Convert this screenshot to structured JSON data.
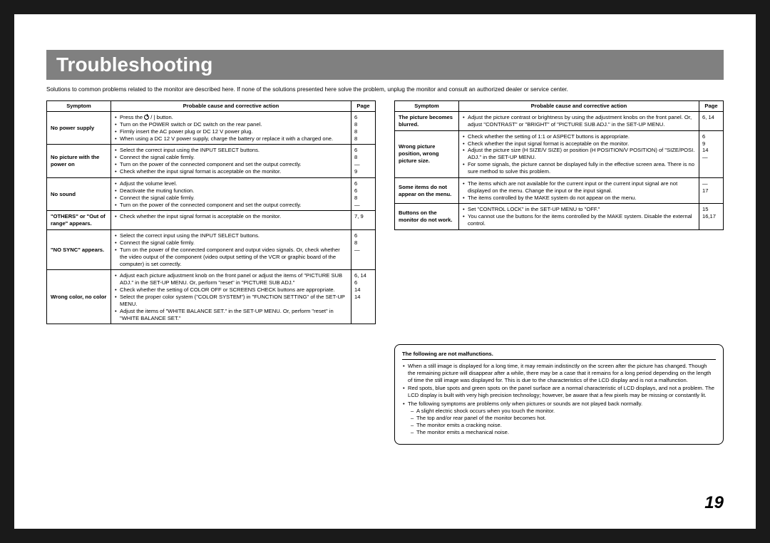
{
  "title": "Troubleshooting",
  "intro": "Solutions to common problems related to the monitor are described here. If none of the solutions presented here solve the problem, unplug the monitor and consult an authorized dealer or service center.",
  "headers": {
    "symptom": "Symptom",
    "action": "Probable cause and corrective action",
    "page": "Page"
  },
  "left_rows": [
    {
      "symptom": "No power supply",
      "actions": [
        "Press the ⏻ / | button.",
        "Turn on the POWER switch or DC switch on the rear panel.",
        "Firmly insert the AC power plug or DC 12 V power plug.",
        "When using a DC 12 V power supply, charge the battery or replace it with a charged one."
      ],
      "pages": [
        "6",
        "8",
        "8",
        "8"
      ]
    },
    {
      "symptom": "No picture with the power on",
      "actions": [
        "Select the correct input using the INPUT SELECT buttons.",
        "Connect the signal cable firmly.",
        "Turn on the power of the connected component and set the output correctly.",
        "Check whether the input signal format is acceptable on the monitor."
      ],
      "pages": [
        "6",
        "8",
        "—",
        "9"
      ]
    },
    {
      "symptom": "No sound",
      "actions": [
        "Adjust the volume level.",
        "Deactivate the muting function.",
        "Connect the signal cable firmly.",
        "Turn on the power of the connected component and set the output correctly."
      ],
      "pages": [
        "6",
        "6",
        "8",
        "—"
      ]
    },
    {
      "symptom": "\"OTHERS\" or \"Out of range\" appears.",
      "actions": [
        "Check whether the input signal format is acceptable on the monitor."
      ],
      "pages": [
        "7, 9"
      ]
    },
    {
      "symptom": "\"NO SYNC\" appears.",
      "actions": [
        "Select the correct input using the INPUT SELECT buttons.",
        "Connect the signal cable firmly.",
        "Turn on the power of the connected component and output video signals. Or, check whether the video output of the component (video output setting of the VCR or graphic board of the computer) is set correctly."
      ],
      "pages": [
        "6",
        "8",
        "—"
      ]
    },
    {
      "symptom": "Wrong color, no color",
      "actions": [
        "Adjust each picture adjustment knob on the front panel or adjust the items of \"PICTURE SUB ADJ.\" in the SET-UP MENU. Or, perform \"reset\" in \"PICTURE SUB ADJ.\"",
        "Check whether the setting of COLOR OFF or SCREENS CHECK buttons are appropriate.",
        "Select the proper color system (\"COLOR SYSTEM\") in \"FUNCTION SETTING\" of the SET-UP MENU.",
        "Adjust the items of \"WHITE BALANCE SET.\" in the SET-UP MENU. Or, perform \"reset\" in \"WHITE BALANCE SET.\""
      ],
      "pages": [
        "6, 14",
        "6",
        "14",
        "14"
      ]
    }
  ],
  "right_rows": [
    {
      "symptom": "The picture becomes blurred.",
      "actions": [
        "Adjust the picture contrast or brightness by using the adjustment knobs on the front panel. Or, adjust \"CONTRAST\" or \"BRIGHT\" of \"PICTURE SUB ADJ.\" in the SET-UP MENU."
      ],
      "pages": [
        "6, 14"
      ]
    },
    {
      "symptom": "Wrong picture position, wrong picture size.",
      "actions": [
        "Check whether the setting of 1:1 or ASPECT buttons is appropriate.",
        "Check whether the input signal format is acceptable on the monitor.",
        "Adjust the picture size (H SIZE/V SIZE) or position (H POSITION/V POSITION) of \"SIZE/POSI. ADJ.\" in the SET-UP MENU.",
        "For some signals, the picture cannot be displayed fully in the effective screen area. There is no sure method to solve this problem."
      ],
      "pages": [
        "6",
        "9",
        "14",
        "—"
      ]
    },
    {
      "symptom": "Some items do not appear on the menu.",
      "actions": [
        "The items which are not available for the current input or the current input signal are not displayed on the menu. Change the input or the input signal.",
        "The items controlled by the MAKE system do not appear on the menu."
      ],
      "pages": [
        "—",
        "17"
      ]
    },
    {
      "symptom": "Buttons on the monitor do not work.",
      "actions": [
        "Set \"CONTROL LOCK\" in the SET-UP MENU to \"OFF.\"",
        "You cannot use the buttons for the items controlled by the MAKE system. Disable the external control."
      ],
      "pages": [
        "15",
        "16,17"
      ]
    }
  ],
  "note": {
    "heading": "The following are not malfunctions.",
    "items": [
      "When a still image is displayed for a long time, it may remain indistinctly on the screen after the picture has changed. Though the remaining picture will disappear after a while, there may be a case that it remains for a long period depending on the length of time the still image was displayed for. This is due to the characteristics of the LCD display and is not a malfunction.",
      "Red spots, blue spots and green spots on the panel surface are a normal characteristic of LCD displays, and not a problem. The LCD display is built with very high precision technology; however, be aware that a few pixels may be missing or constantly lit.",
      "The following symptoms are problems only when pictures or sounds are not played back normally."
    ],
    "subitems": [
      "A slight electric shock occurs when you touch the monitor.",
      "The top and/or rear panel of the monitor becomes hot.",
      "The monitor emits a cracking noise.",
      "The monitor emits a mechanical noise."
    ]
  },
  "page_number": "19"
}
